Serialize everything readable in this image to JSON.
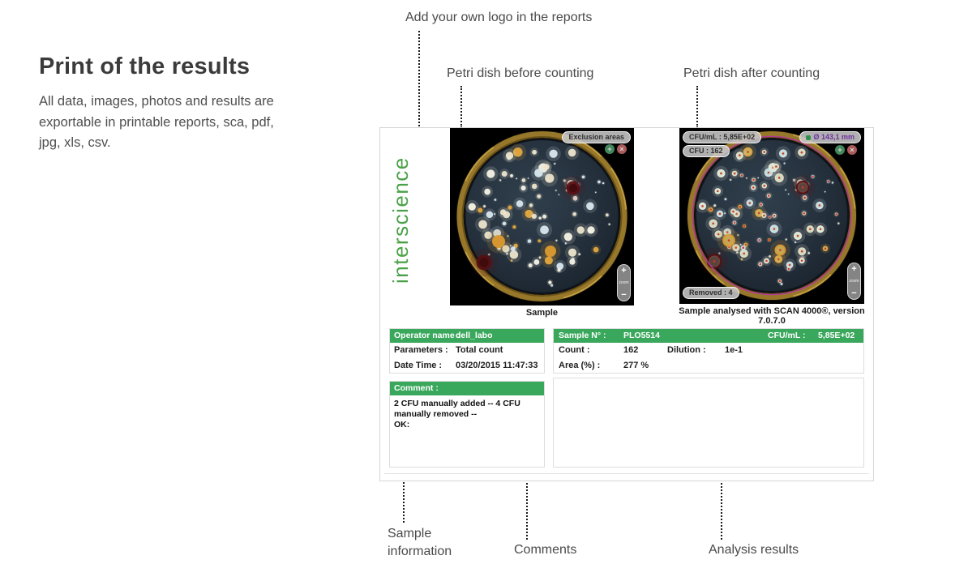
{
  "colors": {
    "accent_green": "#3aa85c",
    "brand_green": "#4aa147",
    "diameter_purple": "#7030a0",
    "annotation_text": "#4a4a4a"
  },
  "intro": {
    "title": "Print of the results",
    "description": "All data, images, photos and results are exportable in printable reports, sca, pdf, jpg, xls, csv."
  },
  "annotations": {
    "logo_label": "Add your own logo in the reports",
    "before_label": "Petri dish before counting",
    "after_label": "Petri dish after counting",
    "sample_info_label": "Sample information",
    "comments_label": "Comments",
    "analysis_label": "Analysis results"
  },
  "report": {
    "brand": "interscience",
    "zoom_label": "zoom",
    "zoom_plus": "+",
    "zoom_minus": "−",
    "mini_add": "+",
    "mini_remove": "×",
    "before_dish": {
      "caption": "Sample",
      "exclusion_badge": "Exclusion areas"
    },
    "after_dish": {
      "caption": "Sample analysed with SCAN 4000®, version 7.0.7.0",
      "cfu_ml_badge": "CFU/mL : 5,85E+02",
      "cfu_badge": "CFU : 162",
      "diameter_badge": "Ø 143,1 mm",
      "removed_badge": "Removed : 4"
    },
    "operator_table": {
      "header_label": "Operator name :",
      "header_value": "dell_labo",
      "parameters_label": "Parameters :",
      "parameters_value": "Total count",
      "datetime_label": "Date Time :",
      "datetime_value": "03/20/2015 11:47:33"
    },
    "sample_table": {
      "header_label": "Sample N° :",
      "header_value": "PLO5514",
      "cfu_ml_label": "CFU/mL :",
      "cfu_ml_value": "5,85E+02",
      "count_label": "Count :",
      "count_value": "162",
      "dilution_label": "Dilution :",
      "dilution_value": "1e-1",
      "area_label": "Area (%) :",
      "area_value": "277 %"
    },
    "comment": {
      "header": "Comment :",
      "text": "2 CFU manually added -- 4 CFU manually removed --",
      "ok": "OK:"
    }
  }
}
